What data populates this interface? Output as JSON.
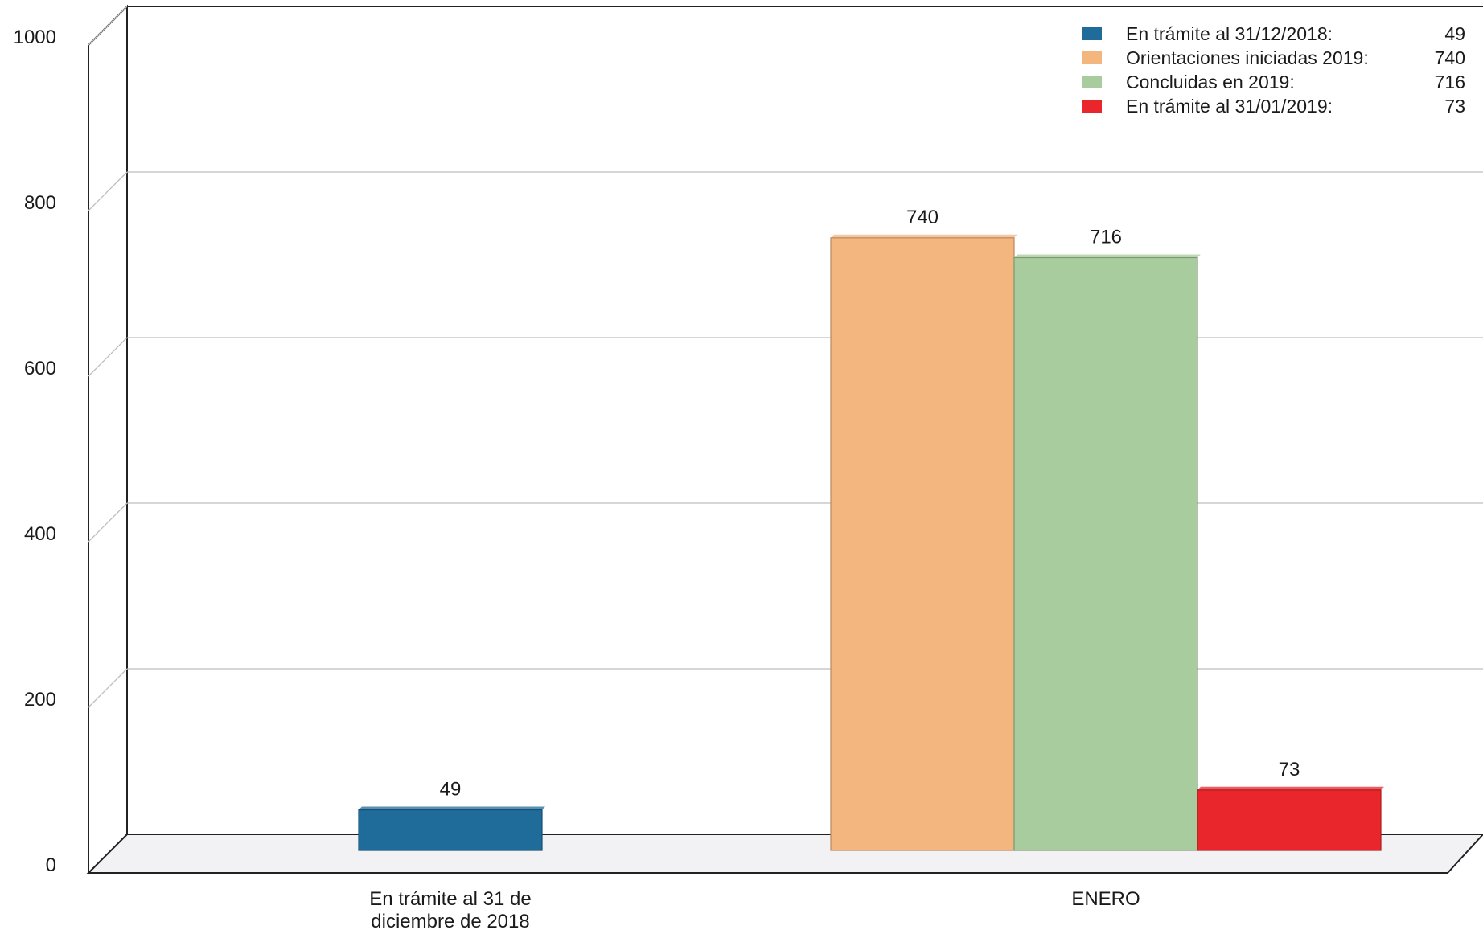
{
  "chart_data": {
    "type": "bar",
    "title": "",
    "xlabel": "",
    "ylabel": "",
    "ylim": [
      0,
      1000
    ],
    "yticks": [
      0,
      200,
      400,
      600,
      800,
      1000
    ],
    "grid": true,
    "legend_position": "top-right",
    "categories": [
      "En trámite al 31 de diciembre de 2018",
      "ENERO"
    ],
    "category_label_lines": [
      [
        "En trámite al 31 de",
        "diciembre de 2018"
      ],
      [
        "ENERO"
      ]
    ],
    "series": [
      {
        "name": "En trámite al 31/12/2018:",
        "legend_value": "49",
        "color": "#1f6b99",
        "values": [
          49,
          null
        ]
      },
      {
        "name": "Orientaciones iniciadas 2019:",
        "legend_value": "740",
        "color": "#f4b67f",
        "values": [
          null,
          740
        ]
      },
      {
        "name": "Concluidas en 2019:",
        "legend_value": "716",
        "color": "#a9cc9e",
        "values": [
          null,
          716
        ]
      },
      {
        "name": "En trámite al 31/01/2019:",
        "legend_value": "73",
        "color": "#e8262b",
        "values": [
          null,
          73
        ]
      }
    ]
  }
}
